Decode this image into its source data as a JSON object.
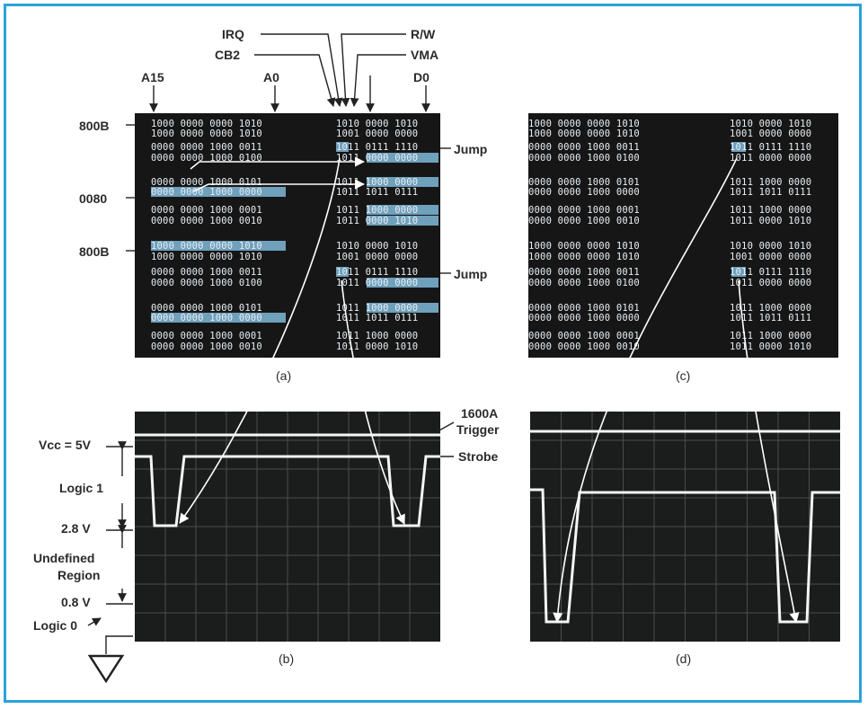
{
  "labels": {
    "irq": "IRQ",
    "rw": "R/W",
    "cb2": "CB2",
    "vma": "VMA",
    "a15": "A15",
    "a0": "A0",
    "d0": "D0",
    "addr_800b_1": "800B",
    "addr_0080": "0080",
    "addr_800b_2": "800B",
    "jump_1": "Jump",
    "jump_2": "Jump",
    "trigger_1600a": "1600A",
    "trigger": "Trigger",
    "strobe": "Strobe",
    "vcc": "Vcc = 5V",
    "logic1": "Logic 1",
    "v28": "2.8 V",
    "undefined1": "Undefined",
    "undefined2": "Region",
    "v08": "0.8 V",
    "logic0": "Logic 0"
  },
  "captions": {
    "a": "(a)",
    "b": "(b)",
    "c": "(c)",
    "d": "(d)"
  },
  "panel_a_rows": [
    [
      "1000 0000 0000 1010",
      "1010 0000 1010"
    ],
    [
      "1000 0000 0000 1010",
      "1001 0000 0000"
    ],
    [
      "0000 0000 1000 0011",
      "1011 0111 1110"
    ],
    [
      "0000 0000 1000 0100",
      "1011 0000 0000"
    ],
    [
      "0000 0000 1000 0101",
      "1011 1000 0000"
    ],
    [
      "0000 0000 1000 0000",
      "1011 1011 0111"
    ],
    [
      "0000 0000 1000 0001",
      "1011 1000 0000"
    ],
    [
      "0000 0000 1000 0010",
      "1011 0000 1010"
    ],
    [
      "1000 0000 0000 1010",
      "1010 0000 1010"
    ],
    [
      "1000 0000 0000 1010",
      "1001 0000 0000"
    ],
    [
      "0000 0000 1000 0011",
      "1011 0111 1110"
    ],
    [
      "0000 0000 1000 0100",
      "1011 0000 0000"
    ],
    [
      "0000 0000 1000 0101",
      "1011 1000 0000"
    ],
    [
      "0000 0000 1000 0000",
      "1011 1011 0111"
    ],
    [
      "0000 0000 1000 0001",
      "1011 1000 0000"
    ],
    [
      "0000 0000 1000 0010",
      "1011 0000 1010"
    ]
  ],
  "panel_c_rows": [
    [
      "1000 0000 0000 1010",
      "1010 0000 1010"
    ],
    [
      "1000 0000 0000 1010",
      "1001 0000 0000"
    ],
    [
      "0000 0000 1000 0011",
      "1011 0111 1110"
    ],
    [
      "0000 0000 1000 0100",
      "1011 0000 0000"
    ],
    [
      "0000 0000 1000 0101",
      "1011 1000 0000"
    ],
    [
      "0000 0000 1000 0000",
      "1011 1011 0111"
    ],
    [
      "0000 0000 1000 0001",
      "1011 1000 0000"
    ],
    [
      "0000 0000 1000 0010",
      "1011 0000 1010"
    ],
    [
      "1000 0000 0000 1010",
      "1010 0000 1010"
    ],
    [
      "1000 0000 0000 1010",
      "1001 0000 0000"
    ],
    [
      "0000 0000 1000 0011",
      "1011 0111 1110"
    ],
    [
      "0000 0000 1000 0100",
      "1011 0000 0000"
    ],
    [
      "0000 0000 1000 0101",
      "1011 1000 0000"
    ],
    [
      "0000 0000 1000 0000",
      "1011 1011 0111"
    ],
    [
      "0000 0000 1000 0001",
      "1011 1000 0000"
    ],
    [
      "0000 0000 1000 0010",
      "1011 0000 1010"
    ]
  ],
  "colors": {
    "border": "#2aa3dc",
    "highlight": "#7fb9d9",
    "screen": "#161616",
    "trace": "#e8eef2"
  }
}
